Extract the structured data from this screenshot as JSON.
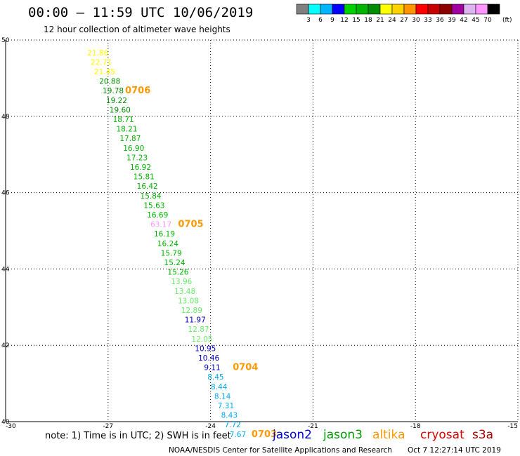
{
  "header": {
    "title": "00:00 – 11:59 UTC 10/06/2019",
    "subtitle": "12 hour collection of altimeter wave heights"
  },
  "colorbar": {
    "colors": [
      "#808080",
      "#00ffff",
      "#00b4ff",
      "#0000ff",
      "#00d200",
      "#00b400",
      "#008c00",
      "#ffff00",
      "#ffd200",
      "#ff9600",
      "#ff0000",
      "#c80000",
      "#8c0000",
      "#a000a0",
      "#dcb4f0",
      "#ff96ff",
      "#000000"
    ],
    "labels": [
      "3",
      "6",
      "9",
      "12",
      "15",
      "18",
      "21",
      "24",
      "27",
      "30",
      "33",
      "36",
      "39",
      "42",
      "45",
      "70"
    ],
    "unit": "(ft)"
  },
  "footer": {
    "note": "note: 1) Time is in UTC; 2) SWH is in feet",
    "satellites": [
      {
        "name": "jason2",
        "color": "#0000dd"
      },
      {
        "name": "jason3",
        "color": "#009900"
      },
      {
        "name": "altika",
        "color": "#ff9900"
      },
      {
        "name": "cryosat",
        "color": "#dd0000"
      },
      {
        "name": "s3a",
        "color": "#aa0000"
      }
    ],
    "credit": "NOAA/NESDIS Center for Satellite Applications and Research",
    "timestamp": "Oct  7 12:27:14 UTC 2019"
  },
  "chart_data": {
    "type": "scatter",
    "xlim": [
      -30,
      -15
    ],
    "ylim": [
      40,
      50
    ],
    "x_ticks": [
      "-30",
      "-27",
      "-24",
      "-21",
      "-18",
      "-15"
    ],
    "y_ticks": [
      "40",
      "42",
      "44",
      "46",
      "48",
      "50"
    ],
    "grid": true,
    "points": [
      {
        "lon": -27.3,
        "lat": 49.6,
        "label": "21.86",
        "color": "#ffff00"
      },
      {
        "lon": -27.2,
        "lat": 49.35,
        "label": "22.71",
        "color": "#ffff00"
      },
      {
        "lon": -27.1,
        "lat": 49.1,
        "label": "21.45",
        "color": "#ffff00"
      },
      {
        "lon": -26.95,
        "lat": 48.85,
        "label": "20.88",
        "color": "#008c00"
      },
      {
        "lon": -26.85,
        "lat": 48.6,
        "label": "19.78",
        "color": "#008c00"
      },
      {
        "lon": -26.75,
        "lat": 48.35,
        "label": "19.22",
        "color": "#008c00"
      },
      {
        "lon": -26.65,
        "lat": 48.1,
        "label": "19.60",
        "color": "#008c00"
      },
      {
        "lon": -26.55,
        "lat": 47.85,
        "label": "18.71",
        "color": "#00b400"
      },
      {
        "lon": -26.45,
        "lat": 47.6,
        "label": "18.21",
        "color": "#00b400"
      },
      {
        "lon": -26.35,
        "lat": 47.35,
        "label": "17.87",
        "color": "#00b400"
      },
      {
        "lon": -26.25,
        "lat": 47.1,
        "label": "16.90",
        "color": "#00b400"
      },
      {
        "lon": -26.15,
        "lat": 46.85,
        "label": "17.23",
        "color": "#00b400"
      },
      {
        "lon": -26.05,
        "lat": 46.6,
        "label": "16.92",
        "color": "#00b400"
      },
      {
        "lon": -25.95,
        "lat": 46.35,
        "label": "15.81",
        "color": "#00b400"
      },
      {
        "lon": -25.85,
        "lat": 46.1,
        "label": "16.42",
        "color": "#00b400"
      },
      {
        "lon": -25.75,
        "lat": 45.85,
        "label": "15.84",
        "color": "#00b400"
      },
      {
        "lon": -25.65,
        "lat": 45.6,
        "label": "15.63",
        "color": "#00b400"
      },
      {
        "lon": -25.55,
        "lat": 45.35,
        "label": "16.69",
        "color": "#00b400"
      },
      {
        "lon": -25.45,
        "lat": 45.1,
        "label": "63.17",
        "color": "#ff96ff"
      },
      {
        "lon": -25.35,
        "lat": 44.85,
        "label": "16.19",
        "color": "#00b400"
      },
      {
        "lon": -25.25,
        "lat": 44.6,
        "label": "16.24",
        "color": "#00b400"
      },
      {
        "lon": -25.15,
        "lat": 44.35,
        "label": "15.79",
        "color": "#00b400"
      },
      {
        "lon": -25.05,
        "lat": 44.1,
        "label": "15.24",
        "color": "#00b400"
      },
      {
        "lon": -24.95,
        "lat": 43.85,
        "label": "15.26",
        "color": "#00b400"
      },
      {
        "lon": -24.85,
        "lat": 43.6,
        "label": "13.96",
        "color": "#66ee66"
      },
      {
        "lon": -24.75,
        "lat": 43.35,
        "label": "13.48",
        "color": "#66ee66"
      },
      {
        "lon": -24.65,
        "lat": 43.1,
        "label": "13.08",
        "color": "#66ee66"
      },
      {
        "lon": -24.55,
        "lat": 42.85,
        "label": "12.89",
        "color": "#66ee66"
      },
      {
        "lon": -24.45,
        "lat": 42.6,
        "label": "11.97",
        "color": "#0000c8"
      },
      {
        "lon": -24.35,
        "lat": 42.35,
        "label": "12.87",
        "color": "#66ee66"
      },
      {
        "lon": -24.25,
        "lat": 42.1,
        "label": "12.05",
        "color": "#66ee66"
      },
      {
        "lon": -24.15,
        "lat": 41.85,
        "label": "10.95",
        "color": "#0000c8"
      },
      {
        "lon": -24.05,
        "lat": 41.6,
        "label": "10.46",
        "color": "#0000c8"
      },
      {
        "lon": -23.95,
        "lat": 41.35,
        "label": "9.11",
        "color": "#0000c8"
      },
      {
        "lon": -23.85,
        "lat": 41.1,
        "label": "8.45",
        "color": "#00aaee"
      },
      {
        "lon": -23.75,
        "lat": 40.85,
        "label": "8.44",
        "color": "#00aaee"
      },
      {
        "lon": -23.65,
        "lat": 40.6,
        "label": "8.14",
        "color": "#00aaee"
      },
      {
        "lon": -23.55,
        "lat": 40.35,
        "label": "7.31",
        "color": "#00aaee"
      },
      {
        "lon": -23.45,
        "lat": 40.1,
        "label": "8.43",
        "color": "#00aaee"
      },
      {
        "lon": -23.35,
        "lat": 39.85,
        "label": "7.72",
        "color": "#00aaee"
      },
      {
        "lon": -23.2,
        "lat": 39.6,
        "label": "7.67",
        "color": "#00aaee"
      }
    ],
    "pass_labels": [
      {
        "text": "0706",
        "lon": -26.5,
        "lat": 48.6
      },
      {
        "text": "0705",
        "lon": -24.95,
        "lat": 45.1
      },
      {
        "text": "0704",
        "lon": -23.35,
        "lat": 41.35
      },
      {
        "text": "0703",
        "lon": -22.8,
        "lat": 39.6
      }
    ]
  }
}
